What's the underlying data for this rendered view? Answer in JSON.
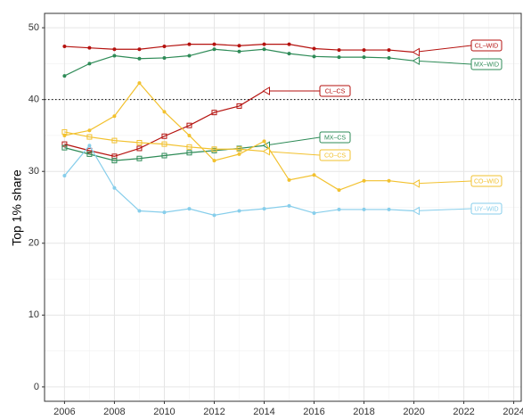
{
  "chart_data": {
    "type": "line",
    "y_label": "Top 1% share",
    "x": [
      2006,
      2007,
      2008,
      2009,
      2010,
      2011,
      2012,
      2013,
      2014,
      2015,
      2016,
      2017,
      2018,
      2019,
      2020
    ],
    "xlim": [
      2005.2,
      2024.3
    ],
    "xticks": [
      2006,
      2008,
      2010,
      2012,
      2014,
      2016,
      2018,
      2020,
      2022,
      2024
    ],
    "ylim": [
      -2,
      52
    ],
    "yticks": [
      0,
      10,
      20,
      30,
      40,
      50
    ],
    "grid": true,
    "hline": 40,
    "series": [
      {
        "name": "CL–WID",
        "color": "#b5120f",
        "marker": "circle",
        "values": [
          47.4,
          47.2,
          47.0,
          47.0,
          47.4,
          47.7,
          47.7,
          47.5,
          47.7,
          47.7,
          47.1,
          46.9,
          46.9,
          46.9,
          46.6
        ]
      },
      {
        "name": "MX–WID",
        "color": "#2e8b57",
        "marker": "circle",
        "values": [
          43.3,
          45.0,
          46.1,
          45.7,
          45.8,
          46.1,
          47.0,
          46.7,
          47.0,
          46.4,
          46.0,
          45.9,
          45.9,
          45.8,
          45.4
        ]
      },
      {
        "name": "CL–CS",
        "color": "#b5120f",
        "marker": "square",
        "values": [
          33.8,
          32.9,
          32.1,
          33.2,
          34.9,
          36.4,
          38.2,
          39.1,
          41.2,
          null,
          null,
          null,
          null,
          null,
          null
        ]
      },
      {
        "name": "MX–CS",
        "color": "#2e8b57",
        "marker": "square",
        "values": [
          33.3,
          32.4,
          31.5,
          31.8,
          32.2,
          32.6,
          32.9,
          33.2,
          33.6,
          null,
          null,
          null,
          null,
          null,
          null
        ]
      },
      {
        "name": "CO–CS",
        "color": "#f2c12e",
        "marker": "square",
        "values": [
          35.5,
          34.8,
          34.3,
          34.0,
          33.8,
          33.4,
          33.1,
          33.1,
          32.8,
          null,
          null,
          null,
          null,
          null,
          null
        ]
      },
      {
        "name": "CO–WID",
        "color": "#f2c12e",
        "marker": "circle",
        "values": [
          35.0,
          35.7,
          37.7,
          42.3,
          38.3,
          35.0,
          31.5,
          32.4,
          34.2,
          28.8,
          29.5,
          27.4,
          28.7,
          28.7,
          28.3
        ]
      },
      {
        "name": "UY–WID",
        "color": "#87ceeb",
        "marker": "circle",
        "values": [
          29.4,
          33.6,
          27.7,
          24.5,
          24.3,
          24.8,
          23.9,
          24.5,
          24.8,
          25.2,
          24.2,
          24.7,
          24.7,
          24.7,
          24.5
        ]
      }
    ]
  }
}
